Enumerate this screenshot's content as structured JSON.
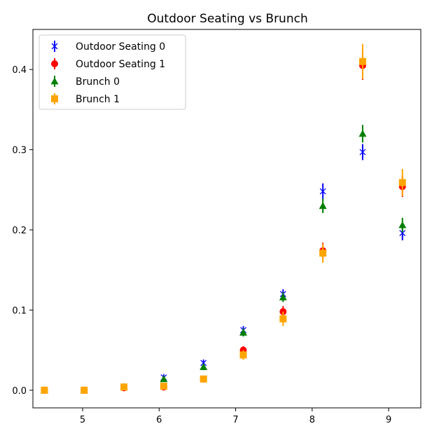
{
  "chart_data": {
    "type": "scatter",
    "title": "Outdoor Seating vs Brunch",
    "xlabel": "",
    "ylabel": "",
    "xlim": [
      4.35,
      9.42
    ],
    "ylim": [
      -0.022,
      0.45
    ],
    "xticks": [
      5,
      6,
      7,
      8,
      9
    ],
    "yticks": [
      0.0,
      0.1,
      0.2,
      0.3,
      0.4
    ],
    "ytick_labels": [
      "0.0",
      "0.1",
      "0.2",
      "0.3",
      "0.4"
    ],
    "grid": false,
    "legend_position": "top-left",
    "series": [
      {
        "name": "Outdoor Seating 0",
        "color": "#0000ff",
        "marker": "x",
        "x": [
          4.5,
          5.02,
          5.54,
          6.06,
          6.58,
          7.1,
          7.62,
          8.14,
          8.66,
          9.18
        ],
        "y": [
          0.0,
          0.0,
          0.004,
          0.016,
          0.034,
          0.075,
          0.12,
          0.248,
          0.297,
          0.196
        ],
        "err": [
          0.001,
          0.001,
          0.002,
          0.003,
          0.004,
          0.005,
          0.006,
          0.01,
          0.01,
          0.009
        ]
      },
      {
        "name": "Outdoor Seating 1",
        "color": "#ff0000",
        "marker": "circle",
        "x": [
          4.5,
          5.02,
          5.54,
          6.06,
          6.58,
          7.1,
          7.62,
          8.14,
          8.66,
          9.18
        ],
        "y": [
          0.0,
          0.0,
          0.003,
          0.004,
          0.014,
          0.05,
          0.098,
          0.174,
          0.405,
          0.254
        ],
        "err": [
          0.001,
          0.001,
          0.002,
          0.003,
          0.003,
          0.005,
          0.007,
          0.01,
          0.018,
          0.013
        ]
      },
      {
        "name": "Brunch 0",
        "color": "#008000",
        "marker": "triangle",
        "x": [
          4.5,
          5.02,
          5.54,
          6.06,
          6.58,
          7.1,
          7.62,
          8.14,
          8.66,
          9.18
        ],
        "y": [
          0.0,
          0.0,
          0.004,
          0.014,
          0.029,
          0.072,
          0.116,
          0.23,
          0.32,
          0.206
        ],
        "err": [
          0.001,
          0.001,
          0.002,
          0.003,
          0.004,
          0.005,
          0.006,
          0.009,
          0.011,
          0.009
        ]
      },
      {
        "name": "Brunch 1",
        "color": "#ffa500",
        "marker": "square",
        "x": [
          4.5,
          5.02,
          5.54,
          6.06,
          6.58,
          7.1,
          7.62,
          8.14,
          8.66,
          9.18
        ],
        "y": [
          0.0,
          0.0,
          0.004,
          0.005,
          0.014,
          0.044,
          0.089,
          0.171,
          0.41,
          0.259
        ],
        "err": [
          0.001,
          0.001,
          0.002,
          0.003,
          0.004,
          0.006,
          0.009,
          0.012,
          0.022,
          0.017
        ]
      }
    ]
  }
}
